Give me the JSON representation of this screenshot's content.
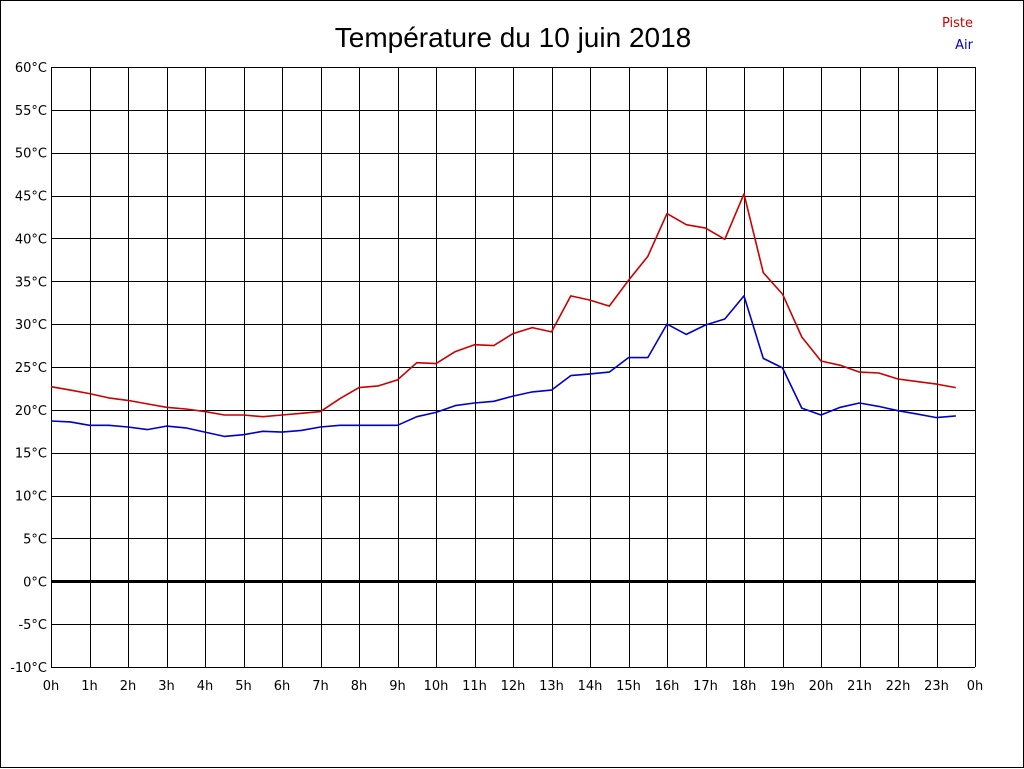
{
  "chart_data": {
    "type": "line",
    "title": "Température du 10 juin 2018",
    "xlabel": "",
    "ylabel": "",
    "ylim": [
      -10,
      60
    ],
    "yticks": [
      "60°C",
      "55°C",
      "50°C",
      "45°C",
      "40°C",
      "35°C",
      "30°C",
      "25°C",
      "20°C",
      "15°C",
      "10°C",
      "5°C",
      "0°C",
      "-5°C",
      "-10°C"
    ],
    "xticks": [
      "0h",
      "1h",
      "2h",
      "3h",
      "4h",
      "5h",
      "6h",
      "7h",
      "8h",
      "9h",
      "10h",
      "11h",
      "12h",
      "13h",
      "14h",
      "15h",
      "16h",
      "17h",
      "18h",
      "19h",
      "20h",
      "21h",
      "22h",
      "23h",
      "0h"
    ],
    "grid": true,
    "legend_position": "top-right",
    "x_hours": [
      0,
      0.5,
      1,
      1.5,
      2,
      2.5,
      3,
      3.5,
      4,
      4.5,
      5,
      5.5,
      6,
      6.5,
      7,
      7.5,
      8,
      8.5,
      9,
      9.5,
      10,
      10.5,
      11,
      11.5,
      12,
      12.5,
      13,
      13.5,
      14,
      14.5,
      15,
      15.5,
      16,
      16.5,
      17,
      17.5,
      18,
      18.5,
      19,
      19.5,
      20,
      20.5,
      21,
      21.5,
      22,
      22.5,
      23,
      23.5
    ],
    "series": [
      {
        "name": "Piste",
        "color": "#cc0000",
        "values": [
          22.7,
          22.3,
          21.9,
          21.4,
          21.1,
          20.7,
          20.3,
          20.1,
          19.8,
          19.4,
          19.4,
          19.2,
          19.4,
          19.6,
          19.8,
          21.3,
          22.6,
          22.8,
          23.5,
          25.5,
          25.4,
          26.8,
          27.6,
          27.5,
          28.9,
          29.6,
          29.1,
          33.3,
          32.8,
          32.1,
          35.1,
          37.9,
          42.9,
          41.6,
          41.2,
          39.9,
          45.2,
          36.0,
          33.5,
          28.5,
          25.7,
          25.2,
          24.4,
          24.3,
          23.6,
          23.3,
          23.0,
          22.6
        ]
      },
      {
        "name": "Air",
        "color": "#0000cc",
        "values": [
          18.7,
          18.6,
          18.2,
          18.2,
          18.0,
          17.7,
          18.1,
          17.9,
          17.4,
          16.9,
          17.1,
          17.5,
          17.4,
          17.6,
          18.0,
          18.2,
          18.2,
          18.2,
          18.2,
          19.2,
          19.7,
          20.5,
          20.8,
          21.0,
          21.6,
          22.1,
          22.3,
          24.0,
          24.2,
          24.4,
          26.1,
          26.1,
          30.0,
          28.8,
          29.9,
          30.6,
          33.3,
          26.0,
          24.9,
          20.2,
          19.4,
          20.3,
          20.8,
          20.4,
          19.9,
          19.5,
          19.1,
          19.3
        ]
      }
    ]
  }
}
